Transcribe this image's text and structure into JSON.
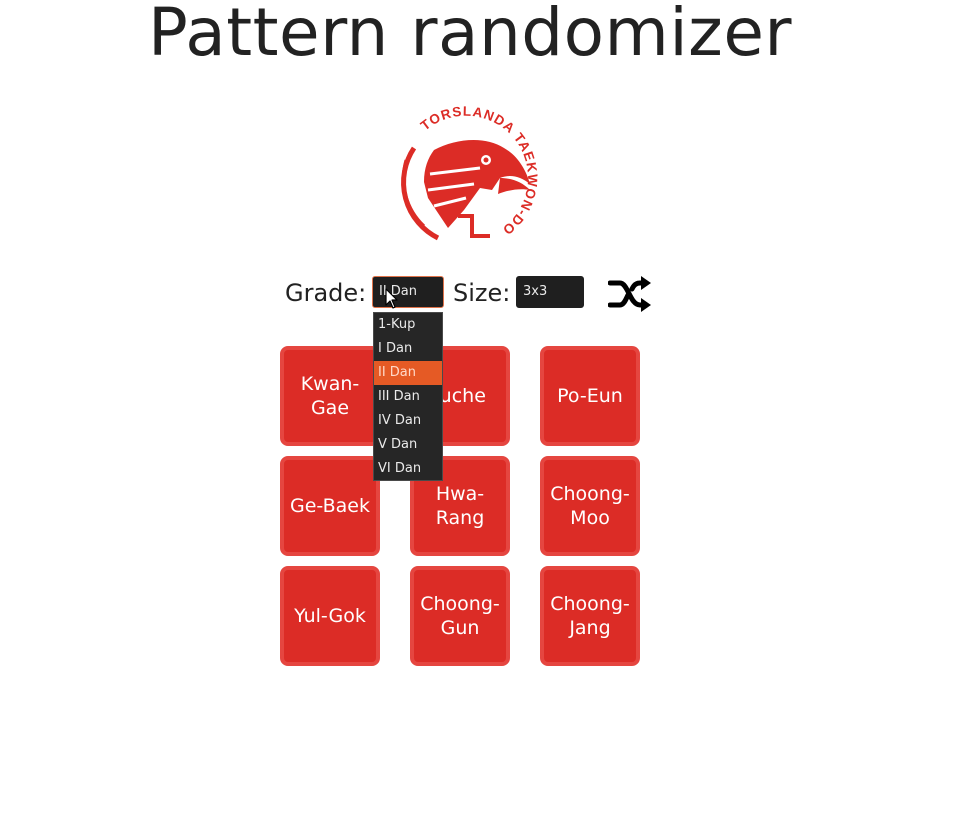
{
  "page": {
    "title": "Pattern randomizer"
  },
  "logo": {
    "text": "TORSLANDA TAEKWON-DO",
    "color": "#dc2c26"
  },
  "controls": {
    "grade_label": "Grade:",
    "grade_value": "II Dan",
    "size_label": "Size:",
    "size_value": "3x3",
    "shuffle_icon": "shuffle-icon"
  },
  "grade_options": [
    "1-Kup",
    "I Dan",
    "II Dan",
    "III Dan",
    "IV Dan",
    "V Dan",
    "VI Dan"
  ],
  "grade_selected_index": 2,
  "patterns": [
    "Kwan-\nGae",
    "Juche",
    "Po-Eun",
    "Ge-Baek",
    "Hwa-\nRang",
    "Choong-\nMoo",
    "Yul-Gok",
    "Choong-\nGun",
    "Choong-\nJang"
  ],
  "colors": {
    "tile": "#dc2c26",
    "tile_border": "#e54640",
    "accent": "#e55a25",
    "select_bg": "#1f1f1f"
  }
}
